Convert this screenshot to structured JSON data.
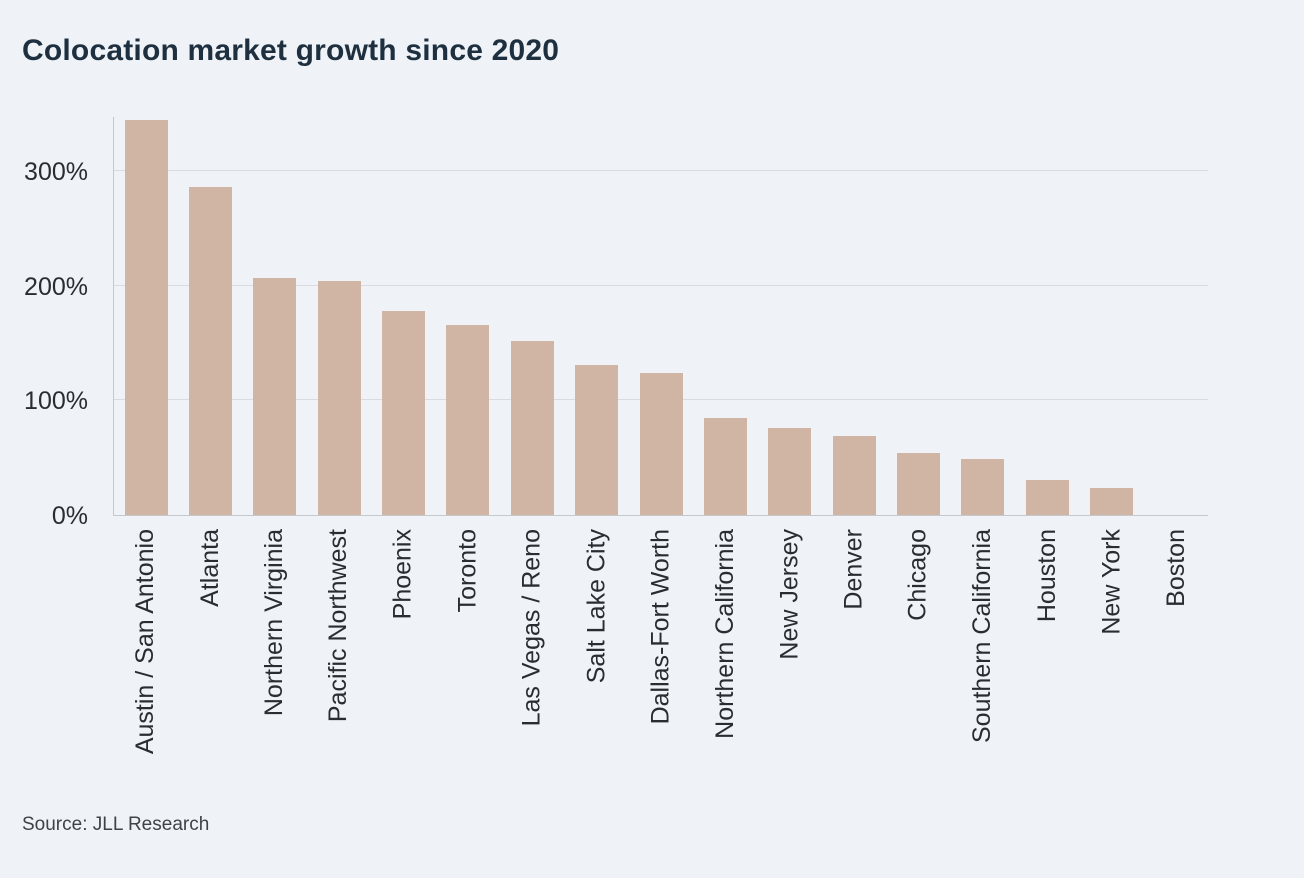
{
  "page": {
    "background": "#eff3f7"
  },
  "chart_data": {
    "type": "bar",
    "title": "Colocation market growth since 2020",
    "source": "Source: JLL Research",
    "unit": "%",
    "categories": [
      "Austin / San Antonio",
      "Atlanta",
      "Northern Virginia",
      "Pacific Northwest",
      "Phoenix",
      "Toronto",
      "Las Vegas / Reno",
      "Salt Lake City",
      "Dallas-Fort Worth",
      "Northern California",
      "New Jersey",
      "Denver",
      "Chicago",
      "Southern California",
      "Houston",
      "New York",
      "Boston"
    ],
    "values": [
      345,
      287,
      207,
      205,
      178,
      166,
      152,
      131,
      124,
      85,
      76,
      69,
      54,
      49,
      31,
      24,
      0
    ],
    "yticks": [
      {
        "label": "0%",
        "value": 0
      },
      {
        "label": "100%",
        "value": 100
      },
      {
        "label": "200%",
        "value": 200
      },
      {
        "label": "300%",
        "value": 300
      }
    ],
    "ylim": [
      0,
      348
    ],
    "xlabel": "",
    "ylabel": "",
    "grid": "horizontal",
    "legend": "none",
    "colors": {
      "bar": "#d1b5a4",
      "title_text": "#1e3040",
      "axis_text": "#292d32",
      "gridline": "#d9dbde",
      "axis_line": "#c6c9cc",
      "source_text": "#3d4348"
    }
  }
}
